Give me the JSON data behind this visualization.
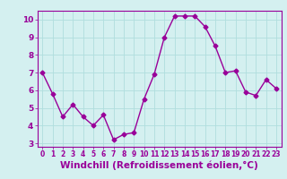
{
  "x": [
    0,
    1,
    2,
    3,
    4,
    5,
    6,
    7,
    8,
    9,
    10,
    11,
    12,
    13,
    14,
    15,
    16,
    17,
    18,
    19,
    20,
    21,
    22,
    23
  ],
  "y": [
    7.0,
    5.8,
    4.5,
    5.2,
    4.5,
    4.0,
    4.6,
    3.2,
    3.5,
    3.6,
    5.5,
    6.9,
    9.0,
    10.2,
    10.2,
    10.2,
    9.6,
    8.5,
    7.0,
    7.1,
    5.9,
    5.7,
    6.6,
    6.1
  ],
  "line_color": "#990099",
  "marker": "D",
  "markersize": 2.5,
  "linewidth": 1.0,
  "xlabel": "Windchill (Refroidissement éolien,°C)",
  "xlim": [
    -0.5,
    23.5
  ],
  "ylim": [
    2.8,
    10.5
  ],
  "xticks": [
    0,
    1,
    2,
    3,
    4,
    5,
    6,
    7,
    8,
    9,
    10,
    11,
    12,
    13,
    14,
    15,
    16,
    17,
    18,
    19,
    20,
    21,
    22,
    23
  ],
  "yticks": [
    3,
    4,
    5,
    6,
    7,
    8,
    9,
    10
  ],
  "background_color": "#d4f0f0",
  "grid_color": "#b0dede",
  "xtick_fontsize": 5.5,
  "ytick_fontsize": 6.5,
  "xlabel_fontsize": 7.5
}
